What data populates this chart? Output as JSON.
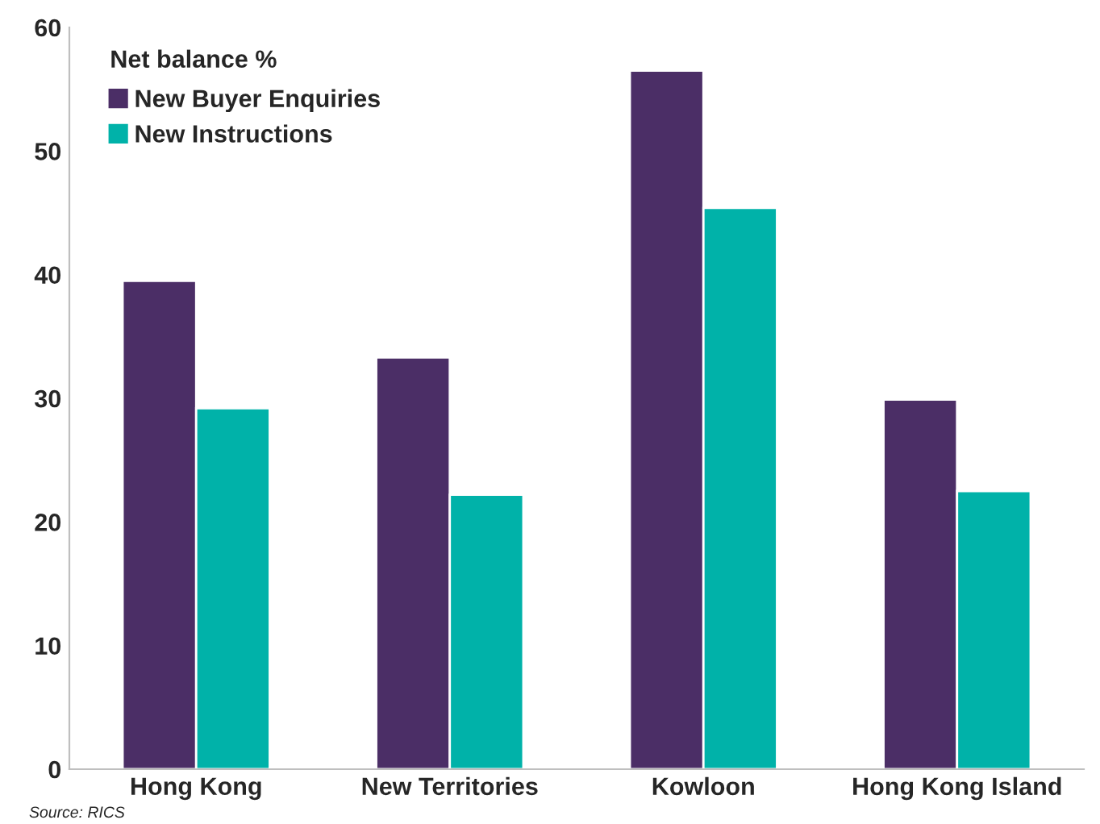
{
  "chart_data": {
    "type": "bar",
    "ylabel": "Net balance %",
    "categories": [
      "Hong Kong",
      "New Territories",
      "Kowloon",
      "Hong Kong Island"
    ],
    "series": [
      {
        "name": "New Buyer Enquiries",
        "color": "#4b2e66",
        "values": [
          39.5,
          33.3,
          56.5,
          29.9
        ]
      },
      {
        "name": "New Instructions",
        "color": "#00b2a9",
        "values": [
          29.2,
          22.2,
          45.4,
          22.5
        ]
      }
    ],
    "ylim": [
      0,
      60
    ],
    "yticks": [
      0,
      10,
      20,
      30,
      40,
      50,
      60
    ],
    "grid": false,
    "legend": "top left",
    "annotations": [
      "Source: RICS"
    ]
  }
}
